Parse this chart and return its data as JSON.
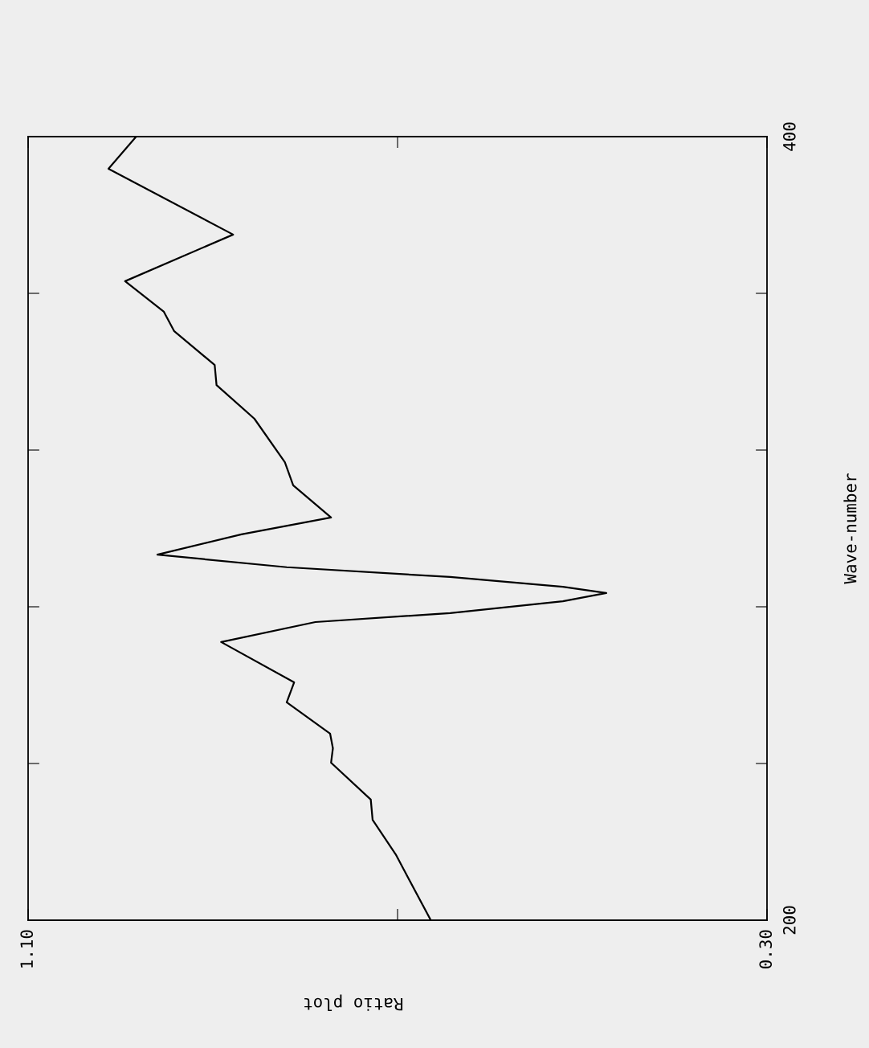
{
  "chart_data": {
    "type": "line",
    "xlabel": "Ratio plot",
    "ylabel": "Wave-number",
    "x": [
      0.664,
      0.702,
      0.727,
      0.729,
      0.772,
      0.77,
      0.773,
      0.82,
      0.812,
      0.891,
      0.789,
      0.643,
      0.521,
      0.474,
      0.521,
      0.643,
      0.82,
      0.96,
      0.869,
      0.772,
      0.813,
      0.822,
      0.855,
      0.896,
      0.898,
      0.942,
      0.953,
      0.995,
      0.878,
      1.013,
      0.983
    ],
    "series": [
      {
        "color": "#000000",
        "values": [
          200.0,
          216.8,
          225.6,
          230.8,
          240.2,
          243.9,
          247.6,
          255.6,
          260.7,
          271.0,
          276.1,
          278.4,
          281.4,
          283.5,
          285.1,
          287.6,
          290.1,
          293.3,
          298.5,
          302.8,
          311.0,
          316.9,
          328.0,
          336.6,
          341.7,
          350.4,
          355.3,
          363.1,
          375.0,
          391.8,
          400.0
        ]
      }
    ],
    "ylim": [
      200,
      400
    ],
    "yticks": [
      200,
      {
        "value": 240,
        "label": null
      },
      {
        "value": 280,
        "label": null
      },
      {
        "value": 320,
        "label": null
      },
      {
        "value": 360,
        "label": null
      },
      400
    ],
    "xlim": [
      1.1,
      0.3
    ],
    "xticks": [
      {
        "value": 1.1,
        "label": "1.10"
      },
      {
        "value": 0.7,
        "label": null
      },
      {
        "value": 0.3,
        "label": "0.30"
      }
    ],
    "grid": false,
    "marker": "none",
    "line_style": "solid"
  }
}
